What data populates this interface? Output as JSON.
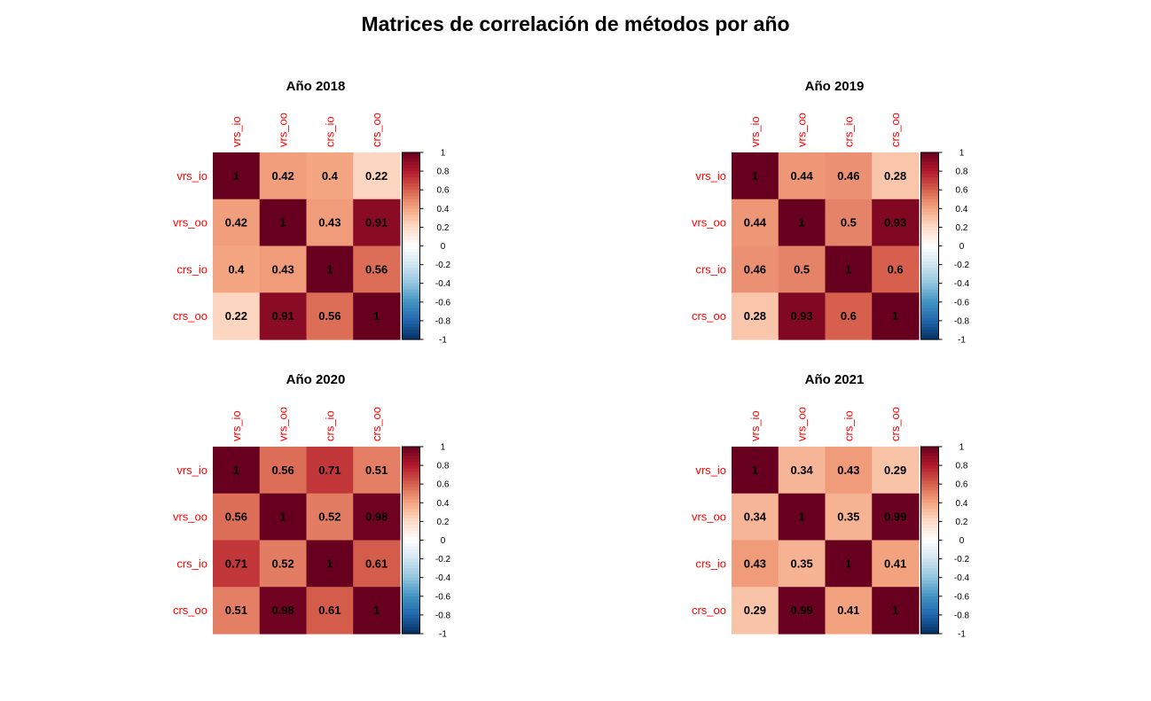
{
  "page": {
    "title": "Matrices de correlación de métodos por año"
  },
  "colors": {
    "label": "#ff0000",
    "cell_text": "#000000"
  },
  "colorbar": {
    "ticks": [
      "1",
      "0.8",
      "0.6",
      "0.4",
      "0.2",
      "0",
      "-0.2",
      "-0.4",
      "-0.6",
      "-0.8",
      "-1"
    ],
    "tick_values": [
      1,
      0.8,
      0.6,
      0.4,
      0.2,
      0,
      -0.2,
      -0.4,
      -0.6,
      -0.8,
      -1
    ],
    "palette": [
      "#67001F",
      "#B2182B",
      "#D6604D",
      "#F4A582",
      "#FDDBC7",
      "#FFFFFF",
      "#D1E5F0",
      "#92C5DE",
      "#4393C3",
      "#2166AC",
      "#053061"
    ]
  },
  "chart_data": [
    {
      "type": "heatmap",
      "title": "Año 2018",
      "labels": [
        "vrs_io",
        "vrs_oo",
        "crs_io",
        "crs_oo"
      ],
      "values": [
        [
          1,
          0.42,
          0.4,
          0.22
        ],
        [
          0.42,
          1,
          0.43,
          0.91
        ],
        [
          0.4,
          0.43,
          1,
          0.56
        ],
        [
          0.22,
          0.91,
          0.56,
          1
        ]
      ],
      "display": [
        [
          "1",
          "0.42",
          "0.4",
          "0.22"
        ],
        [
          "0.42",
          "1",
          "0.43",
          "0.91"
        ],
        [
          "0.4",
          "0.43",
          "1",
          "0.56"
        ],
        [
          "0.22",
          "0.91",
          "0.56",
          "1"
        ]
      ],
      "range": [
        -1,
        1
      ]
    },
    {
      "type": "heatmap",
      "title": "Año 2019",
      "labels": [
        "vrs_io",
        "vrs_oo",
        "crs_io",
        "crs_oo"
      ],
      "values": [
        [
          1,
          0.44,
          0.46,
          0.28
        ],
        [
          0.44,
          1,
          0.5,
          0.93
        ],
        [
          0.46,
          0.5,
          1,
          0.6
        ],
        [
          0.28,
          0.93,
          0.6,
          1
        ]
      ],
      "display": [
        [
          "1",
          "0.44",
          "0.46",
          "0.28"
        ],
        [
          "0.44",
          "1",
          "0.5",
          "0.93"
        ],
        [
          "0.46",
          "0.5",
          "1",
          "0.6"
        ],
        [
          "0.28",
          "0.93",
          "0.6",
          "1"
        ]
      ],
      "range": [
        -1,
        1
      ]
    },
    {
      "type": "heatmap",
      "title": "Año 2020",
      "labels": [
        "vrs_io",
        "vrs_oo",
        "crs_io",
        "crs_oo"
      ],
      "values": [
        [
          1,
          0.56,
          0.71,
          0.51
        ],
        [
          0.56,
          1,
          0.52,
          0.98
        ],
        [
          0.71,
          0.52,
          1,
          0.61
        ],
        [
          0.51,
          0.98,
          0.61,
          1
        ]
      ],
      "display": [
        [
          "1",
          "0.56",
          "0.71",
          "0.51"
        ],
        [
          "0.56",
          "1",
          "0.52",
          "0.98"
        ],
        [
          "0.71",
          "0.52",
          "1",
          "0.61"
        ],
        [
          "0.51",
          "0.98",
          "0.61",
          "1"
        ]
      ],
      "range": [
        -1,
        1
      ]
    },
    {
      "type": "heatmap",
      "title": "Año 2021",
      "labels": [
        "vrs_io",
        "vrs_oo",
        "crs_io",
        "crs_oo"
      ],
      "values": [
        [
          1,
          0.34,
          0.43,
          0.29
        ],
        [
          0.34,
          1,
          0.35,
          0.99
        ],
        [
          0.43,
          0.35,
          1,
          0.41
        ],
        [
          0.29,
          0.99,
          0.41,
          1
        ]
      ],
      "display": [
        [
          "1",
          "0.34",
          "0.43",
          "0.29"
        ],
        [
          "0.34",
          "1",
          "0.35",
          "0.99"
        ],
        [
          "0.43",
          "0.35",
          "1",
          "0.41"
        ],
        [
          "0.29",
          "0.99",
          "0.41",
          "1"
        ]
      ],
      "range": [
        -1,
        1
      ]
    }
  ]
}
